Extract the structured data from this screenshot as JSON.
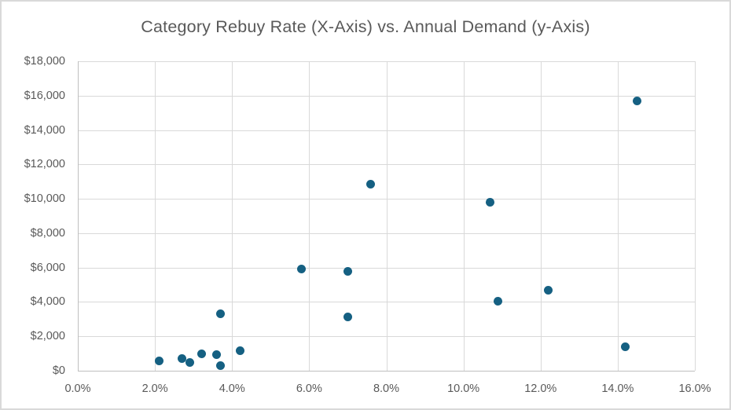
{
  "chart_data": {
    "type": "scatter",
    "title": "Category Rebuy Rate (X-Axis) vs. Annual Demand (y-Axis)",
    "xlabel": "",
    "ylabel": "",
    "xlim": [
      0,
      16
    ],
    "ylim": [
      0,
      18000
    ],
    "x_tick_values": [
      0,
      2,
      4,
      6,
      8,
      10,
      12,
      14,
      16
    ],
    "x_tick_labels": [
      "0.0%",
      "2.0%",
      "4.0%",
      "6.0%",
      "8.0%",
      "10.0%",
      "12.0%",
      "14.0%",
      "16.0%"
    ],
    "y_tick_values": [
      0,
      2000,
      4000,
      6000,
      8000,
      10000,
      12000,
      14000,
      16000,
      18000
    ],
    "y_tick_labels": [
      "$0",
      "$2,000",
      "$4,000",
      "$6,000",
      "$8,000",
      "$10,000",
      "$12,000",
      "$14,000",
      "$16,000",
      "$18,000"
    ],
    "grid": true,
    "legend": "none",
    "series_name": "Annual Demand",
    "points": [
      {
        "x": 2.1,
        "y": 550
      },
      {
        "x": 2.7,
        "y": 725
      },
      {
        "x": 2.9,
        "y": 475
      },
      {
        "x": 3.2,
        "y": 1000
      },
      {
        "x": 3.6,
        "y": 950
      },
      {
        "x": 3.7,
        "y": 300
      },
      {
        "x": 3.7,
        "y": 3300
      },
      {
        "x": 4.2,
        "y": 1150
      },
      {
        "x": 5.8,
        "y": 5900
      },
      {
        "x": 7.0,
        "y": 5800
      },
      {
        "x": 7.0,
        "y": 3150
      },
      {
        "x": 7.6,
        "y": 10850
      },
      {
        "x": 10.7,
        "y": 9800
      },
      {
        "x": 10.9,
        "y": 4050
      },
      {
        "x": 12.2,
        "y": 4700
      },
      {
        "x": 14.2,
        "y": 1400
      },
      {
        "x": 14.5,
        "y": 15700
      }
    ],
    "colors": {
      "marker": "#156082",
      "gridline": "#d9d9d9",
      "axis_line": "#bfbfbf",
      "text": "#595959",
      "background": "#ffffff",
      "chart_border": "#d9d9d9"
    }
  }
}
